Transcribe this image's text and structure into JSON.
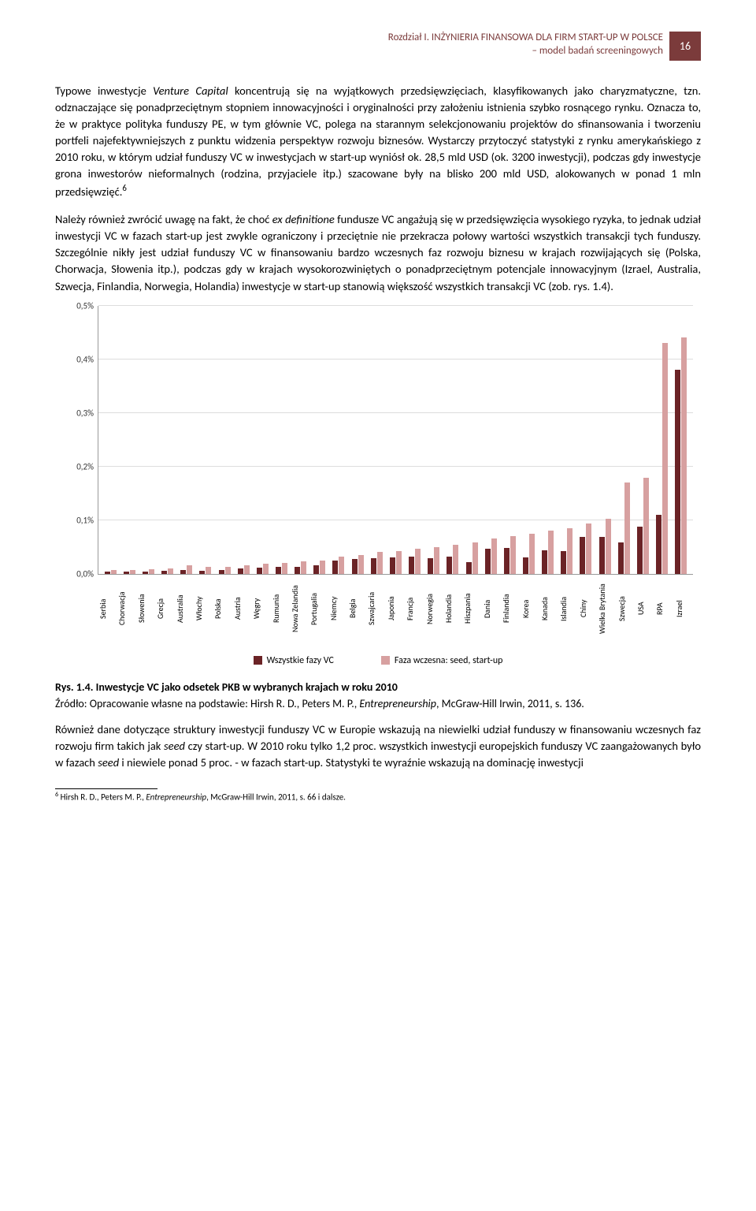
{
  "header": {
    "line1": "Rozdział I. INŻYNIERIA FINANSOWA DLA FIRM START-UP W POLSCE",
    "line2": "– model badań screeningowych",
    "page_number": "16"
  },
  "para1": "Typowe inwestycje <em>Venture Capital</em> koncentrują się na wyjątkowych przedsięwzięciach, klasyfikowanych jako charyzmatyczne, tzn. odznaczające się ponadprzeciętnym stopniem innowacyjności i oryginalności przy założeniu istnienia szybko rosnącego rynku. Oznacza to, że w praktyce polityka funduszy PE, w tym głównie VC, polega na starannym selekcjonowaniu projektów do sfinansowania i tworzeniu portfeli najefektywniejszych z punktu widzenia perspektyw rozwoju biznesów. Wystarczy przytoczyć statystyki z rynku amerykańskiego z 2010 roku, w którym udział funduszy VC w inwestycjach w start-up wyniósł ok. 28,5 mld USD (ok. 3200 inwestycji), podczas gdy inwestycje grona inwestorów nieformalnych (rodzina, przyjaciele itp.) szacowane były na blisko 200 mld USD, alokowanych w ponad 1 mln przedsięwzięć.<sup>6</sup>",
  "para2": "Należy również zwrócić uwagę na fakt, że choć <em>ex definitione</em> fundusze VC angażują się w przedsięwzięcia wysokiego ryzyka, to jednak udział inwestycji VC w fazach start-up jest zwykle ograniczony i przeciętnie nie przekracza połowy wartości wszystkich transakcji tych funduszy. Szczególnie nikły jest udział funduszy VC w finansowaniu bardzo wczesnych faz rozwoju biznesu w krajach rozwijających się (Polska, Chorwacja, Słowenia itp.), podczas gdy w krajach wysokorozwiniętych o ponadprzeciętnym potencjale innowacyjnym (Izrael, Australia, Szwecja, Finlandia, Norwegia, Holandia) inwestycje w start-up stanowią większość wszystkich transakcji VC (zob. rys. 1.4).",
  "chart": {
    "type": "grouped-bar",
    "ylim": [
      0,
      0.5
    ],
    "ytick_step": 0.1,
    "ytick_labels": [
      "0,0%",
      "0,1%",
      "0,2%",
      "0,3%",
      "0,4%",
      "0,5%"
    ],
    "colors": {
      "series1": "#6b2326",
      "series2": "#d7a0a0"
    },
    "background": "#ffffff",
    "grid_color": "#dddddd",
    "series_names": {
      "series1": "Wszystkie fazy VC",
      "series2": "Faza wczesna: seed, start-up"
    },
    "categories": [
      {
        "label": "Serbia",
        "v1": 0.004,
        "v2": 0.006
      },
      {
        "label": "Chorwacja",
        "v1": 0.003,
        "v2": 0.007
      },
      {
        "label": "Słowenia",
        "v1": 0.004,
        "v2": 0.008
      },
      {
        "label": "Grecja",
        "v1": 0.005,
        "v2": 0.01
      },
      {
        "label": "Australia",
        "v1": 0.006,
        "v2": 0.015
      },
      {
        "label": "Włochy",
        "v1": 0.005,
        "v2": 0.012
      },
      {
        "label": "Polska",
        "v1": 0.006,
        "v2": 0.013
      },
      {
        "label": "Austria",
        "v1": 0.01,
        "v2": 0.016
      },
      {
        "label": "Węgry",
        "v1": 0.011,
        "v2": 0.018
      },
      {
        "label": "Rumunia",
        "v1": 0.012,
        "v2": 0.02
      },
      {
        "label": "Nowa Zelandia",
        "v1": 0.013,
        "v2": 0.023
      },
      {
        "label": "Portugalia",
        "v1": 0.015,
        "v2": 0.024
      },
      {
        "label": "Niemcy",
        "v1": 0.024,
        "v2": 0.032
      },
      {
        "label": "Belgia",
        "v1": 0.027,
        "v2": 0.034
      },
      {
        "label": "Szwajcaria",
        "v1": 0.028,
        "v2": 0.04
      },
      {
        "label": "Japonia",
        "v1": 0.03,
        "v2": 0.042
      },
      {
        "label": "Francja",
        "v1": 0.032,
        "v2": 0.046
      },
      {
        "label": "Norwegia",
        "v1": 0.028,
        "v2": 0.05
      },
      {
        "label": "Holandia",
        "v1": 0.032,
        "v2": 0.054
      },
      {
        "label": "Hiszpania",
        "v1": 0.022,
        "v2": 0.058
      },
      {
        "label": "Dania",
        "v1": 0.046,
        "v2": 0.066
      },
      {
        "label": "Finlandia",
        "v1": 0.048,
        "v2": 0.07
      },
      {
        "label": "Korea",
        "v1": 0.03,
        "v2": 0.075
      },
      {
        "label": "Kanada",
        "v1": 0.044,
        "v2": 0.08
      },
      {
        "label": "Islandia",
        "v1": 0.042,
        "v2": 0.085
      },
      {
        "label": "Chiny",
        "v1": 0.068,
        "v2": 0.094
      },
      {
        "label": "Wielka Brytania",
        "v1": 0.068,
        "v2": 0.102
      },
      {
        "label": "Szwecja",
        "v1": 0.058,
        "v2": 0.17
      },
      {
        "label": "USA",
        "v1": 0.088,
        "v2": 0.178
      },
      {
        "label": "RPA",
        "v1": 0.11,
        "v2": 0.43
      },
      {
        "label": "Izrael",
        "v1": 0.38,
        "v2": 0.44
      }
    ]
  },
  "caption_bold": "Rys. 1.4. Inwestycje VC jako odsetek PKB w wybranych krajach w roku 2010",
  "source": "Źródło: Opracowanie własne na podstawie: Hirsh R. D., Peters M. P., <em>Entrepreneurship</em>, McGraw-Hill Irwin, 2011, s. 136.",
  "para3": "Również dane dotyczące struktury inwestycji funduszy VC w Europie wskazują na niewielki udział funduszy w finansowaniu wczesnych faz rozwoju firm takich jak <em>seed</em> czy start-up. W 2010 roku tylko 1,2 proc. wszystkich inwestycji europejskich funduszy VC zaangażowanych było w fazach <em>seed</em> i niewiele ponad 5 proc. - w fazach start-up. Statystyki te wyraźnie wskazują na dominację inwestycji",
  "footnote": "<sup>6</sup> Hirsh R. D., Peters M. P., <em>Entrepreneurship</em>, McGraw-Hill Irwin, 2011, s. 66 i dalsze."
}
